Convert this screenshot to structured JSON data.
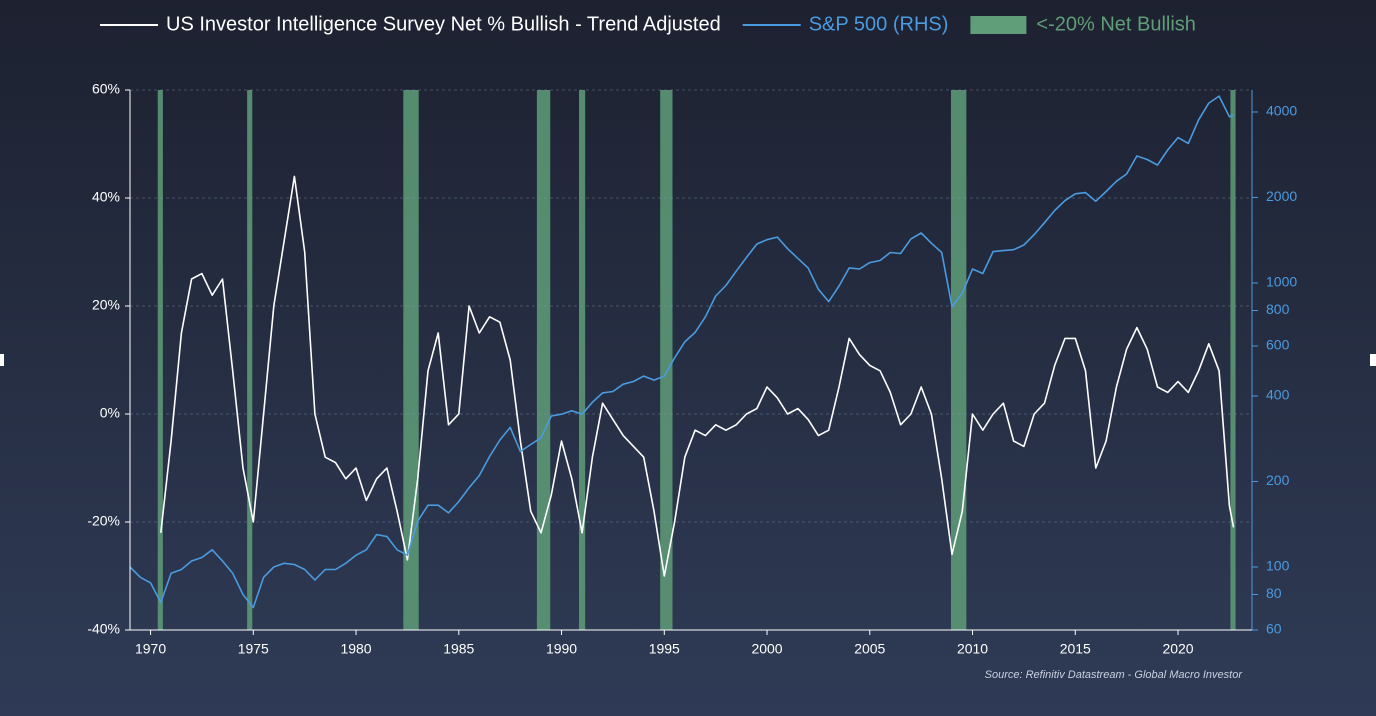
{
  "chart_data": {
    "type": "line",
    "legend": "top",
    "source": "Source: Refinitiv Datastream - Global Macro Investor",
    "x": [
      1969.0,
      1969.5,
      1970.0,
      1970.5,
      1971.0,
      1971.5,
      1972.0,
      1972.5,
      1973.0,
      1973.5,
      1974.0,
      1974.5,
      1975.0,
      1975.5,
      1976.0,
      1976.5,
      1977.0,
      1977.5,
      1978.0,
      1978.5,
      1979.0,
      1979.5,
      1980.0,
      1980.5,
      1981.0,
      1981.5,
      1982.0,
      1982.5,
      1983.0,
      1983.5,
      1984.0,
      1984.5,
      1985.0,
      1985.5,
      1986.0,
      1986.5,
      1987.0,
      1987.5,
      1988.0,
      1988.5,
      1989.0,
      1989.5,
      1990.0,
      1990.5,
      1991.0,
      1991.5,
      1992.0,
      1992.5,
      1993.0,
      1993.5,
      1994.0,
      1994.5,
      1995.0,
      1995.5,
      1996.0,
      1996.5,
      1997.0,
      1997.5,
      1998.0,
      1998.5,
      1999.0,
      1999.5,
      2000.0,
      2000.5,
      2001.0,
      2001.5,
      2002.0,
      2002.5,
      2003.0,
      2003.5,
      2004.0,
      2004.5,
      2005.0,
      2005.5,
      2006.0,
      2006.5,
      2007.0,
      2007.5,
      2008.0,
      2008.5,
      2009.0,
      2009.5,
      2010.0,
      2010.5,
      2011.0,
      2011.5,
      2012.0,
      2012.5,
      2013.0,
      2013.5,
      2014.0,
      2014.5,
      2015.0,
      2015.5,
      2016.0,
      2016.5,
      2017.0,
      2017.5,
      2018.0,
      2018.5,
      2019.0,
      2019.5,
      2020.0,
      2020.5,
      2021.0,
      2021.5,
      2022.0,
      2022.5,
      2022.7
    ],
    "series": [
      {
        "name": "US Investor Intelligence Survey Net % Bullish - Trend Adjusted",
        "color": "#ffffff",
        "axis": "y",
        "values": [
          null,
          null,
          null,
          -22,
          -5,
          15,
          25,
          26,
          22,
          25,
          8,
          -10,
          -20,
          0,
          20,
          32,
          44,
          30,
          0,
          -8,
          -9,
          -12,
          -10,
          -16,
          -12,
          -10,
          -18,
          -27,
          -12,
          8,
          15,
          -2,
          0,
          20,
          15,
          18,
          17,
          10,
          -5,
          -18,
          -22,
          -15,
          -5,
          -12,
          -22,
          -8,
          2,
          -1,
          -4,
          -6,
          -8,
          -18,
          -30,
          -20,
          -8,
          -3,
          -4,
          -2,
          -3,
          -2,
          0,
          1,
          5,
          3,
          0,
          1,
          -1,
          -4,
          -3,
          5,
          14,
          11,
          9,
          8,
          4,
          -2,
          0,
          5,
          0,
          -12,
          -26,
          -18,
          0,
          -3,
          0,
          2,
          -5,
          -6,
          0,
          2,
          9,
          14,
          14,
          8,
          -10,
          -5,
          5,
          12,
          16,
          12,
          5,
          4,
          6,
          4,
          8,
          13,
          8,
          -17,
          -21
        ]
      },
      {
        "name": "S&P 500 (RHS)",
        "color": "#4a9be0",
        "axis": "y2",
        "values": [
          100,
          92,
          88,
          75,
          95,
          98,
          105,
          108,
          115,
          105,
          95,
          80,
          72,
          92,
          100,
          103,
          102,
          98,
          90,
          98,
          98,
          103,
          110,
          115,
          130,
          128,
          115,
          110,
          145,
          165,
          165,
          155,
          170,
          190,
          210,
          245,
          280,
          310,
          255,
          270,
          285,
          340,
          345,
          355,
          345,
          380,
          410,
          415,
          440,
          450,
          470,
          455,
          470,
          545,
          620,
          670,
          760,
          900,
          980,
          1100,
          1230,
          1370,
          1420,
          1450,
          1320,
          1220,
          1130,
          950,
          860,
          975,
          1130,
          1120,
          1180,
          1200,
          1280,
          1270,
          1430,
          1500,
          1380,
          1280,
          825,
          920,
          1120,
          1080,
          1290,
          1300,
          1310,
          1360,
          1480,
          1630,
          1800,
          1950,
          2060,
          2080,
          1940,
          2100,
          2280,
          2420,
          2800,
          2720,
          2600,
          2940,
          3250,
          3100,
          3750,
          4300,
          4550,
          3850,
          3900
        ]
      }
    ],
    "shaded_label": "<-20% Net Bullish",
    "shaded_color": "#5f9e78",
    "shaded_periods": [
      [
        1970.35,
        1970.6
      ],
      [
        1974.7,
        1974.95
      ],
      [
        1982.3,
        1983.05
      ],
      [
        1988.8,
        1989.45
      ],
      [
        1990.85,
        1991.15
      ],
      [
        1994.8,
        1995.4
      ],
      [
        2008.95,
        2009.7
      ],
      [
        2022.55,
        2022.8
      ]
    ],
    "xlim": [
      1969.0,
      2023.6
    ],
    "xticks": [
      1970,
      1975,
      1980,
      1985,
      1990,
      1995,
      2000,
      2005,
      2010,
      2015,
      2020
    ],
    "ylim": [
      -40,
      60
    ],
    "yticks": [
      {
        "value": -40,
        "label": "-40%"
      },
      {
        "value": -20,
        "label": "-20%"
      },
      {
        "value": 0,
        "label": "0%"
      },
      {
        "value": 20,
        "label": "20%"
      },
      {
        "value": 40,
        "label": "40%"
      },
      {
        "value": 60,
        "label": "60%"
      }
    ],
    "y2lim": [
      60,
      4780
    ],
    "y2log": true,
    "y2ticks": [
      60,
      80,
      100,
      200,
      400,
      600,
      800,
      1000,
      2000,
      4000
    ],
    "grid": true
  }
}
